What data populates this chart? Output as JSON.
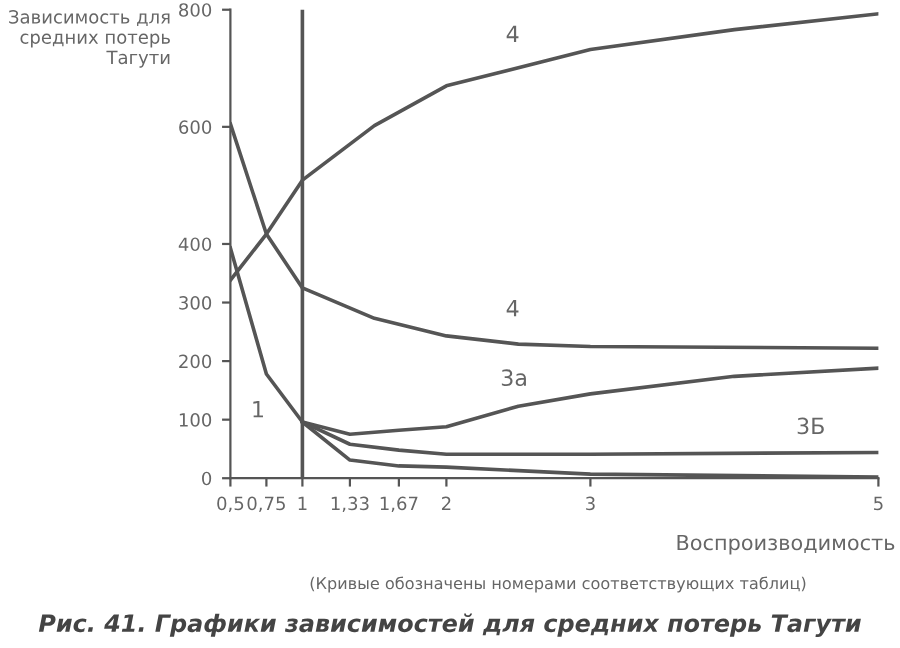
{
  "chart_data": {
    "type": "line",
    "title": "Рис. 41. Графики зависимостей для средних потерь Тагути",
    "xlabel": "Воспроизводимость",
    "ylabel": "Зависимость для средних потерь Тагути",
    "xlim": [
      0.5,
      5
    ],
    "ylim": [
      0,
      800
    ],
    "xticks": [
      {
        "value": 0.5,
        "label": "0,5"
      },
      {
        "value": 0.75,
        "label": "0,75"
      },
      1,
      {
        "value": 1.33,
        "label": "1,33"
      },
      {
        "value": 1.67,
        "label": "1,67"
      },
      2,
      3,
      5
    ],
    "yticks": [
      0,
      100,
      200,
      300,
      400,
      600,
      800
    ],
    "grid": false,
    "marker": "none",
    "line_style": "solid",
    "ref_lines": [
      {
        "axis": "x",
        "value": 1,
        "label": null,
        "color": "#555555"
      }
    ],
    "series": [
      {
        "name": "4",
        "color": "#555555",
        "x": [
          0.5,
          0.75,
          1,
          1.5,
          2,
          3,
          4,
          5
        ],
        "values": [
          338,
          417,
          509,
          602,
          670,
          732,
          766,
          793
        ]
      },
      {
        "name": "4",
        "color": "#555555",
        "x": [
          0.5,
          0.75,
          1,
          1.5,
          2,
          2.5,
          3,
          5
        ],
        "values": [
          605,
          417,
          325,
          273,
          243,
          229,
          225,
          222
        ]
      },
      {
        "name": "3а",
        "color": "#555555",
        "x": [
          1,
          1.33,
          1.67,
          2,
          2.5,
          3,
          4,
          5
        ],
        "values": [
          96,
          75,
          82,
          88,
          123,
          144,
          174,
          188
        ]
      },
      {
        "name": "3Б",
        "color": "#555555",
        "x": [
          1,
          1.33,
          1.67,
          2,
          3,
          5
        ],
        "values": [
          96,
          58,
          48,
          41,
          41,
          44
        ]
      },
      {
        "name": "1",
        "color": "#555555",
        "x": [
          0.5,
          0.75,
          1,
          1.33,
          1.67,
          2,
          3,
          5
        ],
        "values": [
          393,
          178,
          96,
          31,
          21,
          19,
          7,
          2
        ]
      }
    ],
    "annotations": [
      "(Кривые обозначены номерами соответствующих таблиц)"
    ]
  }
}
